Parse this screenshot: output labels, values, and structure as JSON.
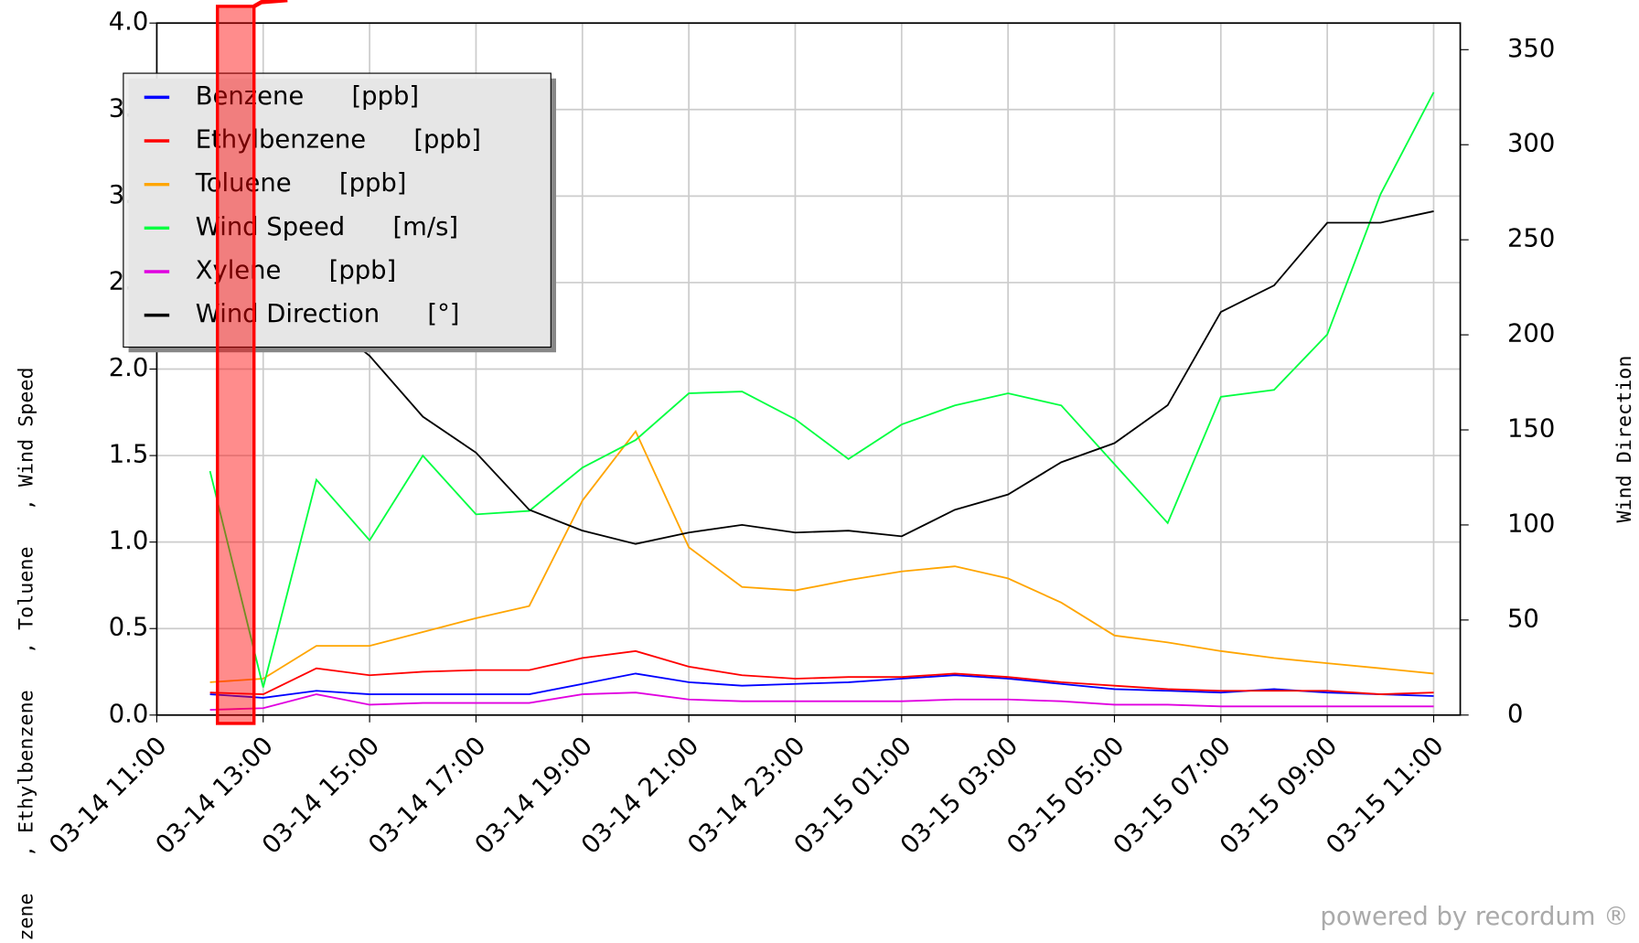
{
  "chart_data": {
    "type": "line",
    "y_label": "zene   , Ethylbenzene   , Toluene   , Wind Speed",
    "y2_label": "Wind Direction",
    "footer": "powered by recordum ®",
    "x": [
      "03-14 12:00",
      "03-14 13:00",
      "03-14 14:00",
      "03-14 15:00",
      "03-14 16:00",
      "03-14 17:00",
      "03-14 18:00",
      "03-14 19:00",
      "03-14 20:00",
      "03-14 21:00",
      "03-14 22:00",
      "03-14 23:00",
      "03-15 00:00",
      "03-15 01:00",
      "03-15 02:00",
      "03-15 03:00",
      "03-15 04:00",
      "03-15 05:00",
      "03-15 06:00",
      "03-15 07:00",
      "03-15 08:00",
      "03-15 09:00",
      "03-15 10:00",
      "03-15 11:00"
    ],
    "xlim": [
      "03-14 11:00",
      "03-15 11:30"
    ],
    "xticks": [
      "03-14 11:00",
      "03-14 13:00",
      "03-14 15:00",
      "03-14 17:00",
      "03-14 19:00",
      "03-14 21:00",
      "03-14 23:00",
      "03-15 01:00",
      "03-15 03:00",
      "03-15 05:00",
      "03-15 07:00",
      "03-15 09:00",
      "03-15 11:00"
    ],
    "ylim": [
      0,
      4
    ],
    "yticks": [
      {
        "value": 0,
        "label": "0.0"
      },
      0.5,
      {
        "value": 1,
        "label": "1.0"
      },
      1.5,
      {
        "value": 2,
        "label": "2.0"
      },
      2.5,
      {
        "value": 3,
        "label": "3.0"
      },
      3.5,
      {
        "value": 4,
        "label": "4.0"
      }
    ],
    "y2lim": [
      0,
      364
    ],
    "y2ticks": [
      0,
      50,
      100,
      150,
      200,
      250,
      300,
      350
    ],
    "grid": true,
    "legend": "upper left",
    "series": [
      {
        "name": "Benzene      [ppb]",
        "color": "#0000ff",
        "values": [
          0.12,
          0.1,
          0.14,
          0.12,
          0.12,
          0.12,
          0.12,
          0.18,
          0.24,
          0.19,
          0.17,
          0.18,
          0.19,
          0.21,
          0.23,
          0.21,
          0.18,
          0.15,
          0.14,
          0.13,
          0.15,
          0.13,
          0.12,
          0.11
        ]
      },
      {
        "name": "Ethylbenzene      [ppb]",
        "color": "#ff0000",
        "values": [
          0.13,
          0.12,
          0.27,
          0.23,
          0.25,
          0.26,
          0.26,
          0.33,
          0.37,
          0.28,
          0.23,
          0.21,
          0.22,
          0.22,
          0.24,
          0.22,
          0.19,
          0.17,
          0.15,
          0.14,
          0.14,
          0.14,
          0.12,
          0.13
        ]
      },
      {
        "name": "Toluene      [ppb]",
        "color": "#ffa500",
        "values": [
          0.19,
          0.21,
          0.4,
          0.4,
          0.48,
          0.56,
          0.63,
          1.24,
          1.64,
          0.97,
          0.74,
          0.72,
          0.78,
          0.83,
          0.86,
          0.79,
          0.65,
          0.46,
          0.42,
          0.37,
          0.33,
          0.3,
          0.27,
          0.24
        ]
      },
      {
        "name": "Wind Speed      [m/s]",
        "color": "#00ff40",
        "values": [
          1.41,
          0.16,
          1.36,
          1.01,
          1.5,
          1.16,
          1.18,
          1.43,
          1.59,
          1.86,
          1.87,
          1.71,
          1.48,
          1.68,
          1.79,
          1.86,
          1.79,
          1.45,
          1.11,
          1.84,
          1.88,
          2.2,
          3.01,
          3.6
        ]
      },
      {
        "name": "Xylene      [ppb]",
        "color": "#e000e0",
        "values": [
          0.03,
          0.04,
          0.12,
          0.06,
          0.07,
          0.07,
          0.07,
          0.12,
          0.13,
          0.09,
          0.08,
          0.08,
          0.08,
          0.08,
          0.09,
          0.09,
          0.08,
          0.06,
          0.06,
          0.05,
          0.05,
          0.05,
          0.05,
          0.05
        ]
      },
      {
        "name": "Wind Direction      [°]",
        "color": "#000000",
        "axis": "y2",
        "values": [
          263,
          241,
          211,
          189,
          157,
          138,
          108,
          97,
          90,
          96,
          100,
          96,
          97,
          94,
          108,
          116,
          133,
          143,
          163,
          212,
          226,
          259,
          259,
          265
        ]
      }
    ]
  }
}
